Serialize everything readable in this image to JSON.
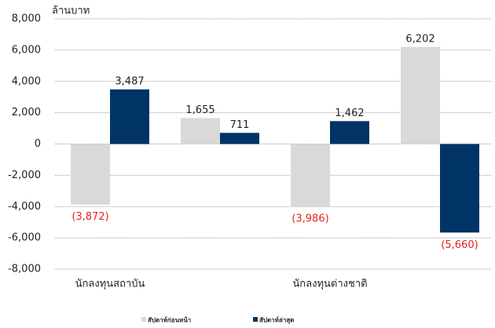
{
  "chart_data": {
    "type": "bar",
    "y_label": "ล้านบาท",
    "categories": [
      "นักลงทุนสถาบัน",
      null,
      "นักลงทุนต่างชาติ",
      null
    ],
    "series": [
      {
        "name": "สัปดาห์ก่อนหน้า",
        "color": "#d9d9d9",
        "values": [
          -3872,
          1655,
          -3986,
          6202
        ],
        "value_labels": [
          "(3,872)",
          "1,655",
          "(3,986)",
          "6,202"
        ]
      },
      {
        "name": "สัปดาห์ล่าสุด",
        "color": "#003366",
        "values": [
          3487,
          711,
          1462,
          -5660
        ],
        "value_labels": [
          "3,487",
          "711",
          "1,462",
          "(5,660)"
        ]
      }
    ],
    "ylim": [
      -8000,
      8000
    ],
    "yticks": [
      {
        "value": -8000,
        "label": "-8,000"
      },
      {
        "value": -6000,
        "label": "-6,000"
      },
      {
        "value": -4000,
        "label": "-4,000"
      },
      {
        "value": -2000,
        "label": "-2,000"
      },
      0,
      {
        "value": 2000,
        "label": "2,000"
      },
      {
        "value": 4000,
        "label": "4,000"
      },
      {
        "value": 6000,
        "label": "6,000"
      },
      {
        "value": 8000,
        "label": "8,000"
      }
    ],
    "grid": true,
    "negative_label_color": "#e8201c",
    "legend": "bottom"
  }
}
